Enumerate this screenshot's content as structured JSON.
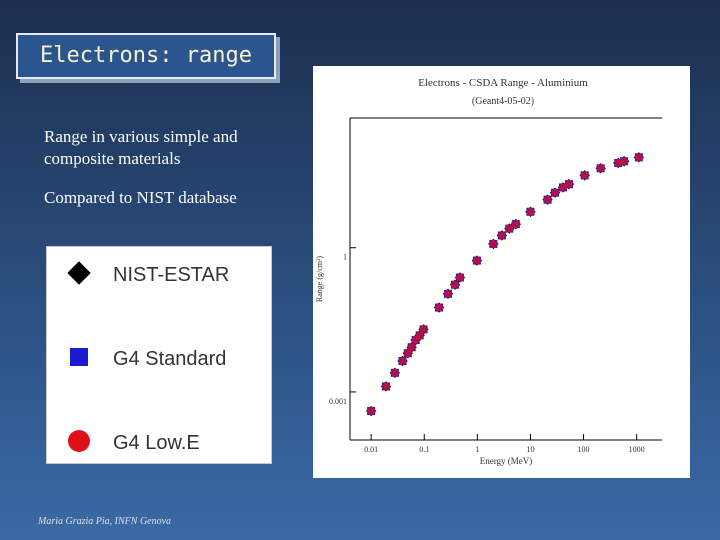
{
  "slide": {
    "title": "Electrons: range",
    "bullets": [
      "Range in various simple and composite materials",
      "Compared to NIST database"
    ],
    "footer": "Maria Grazia Pia, INFN Genova"
  },
  "chart_data": {
    "type": "scatter",
    "title": "Electrons - CSDA Range - Aluminium",
    "subtitle": "(Geant4-05-02)",
    "x_label": "Energy (MeV)",
    "y_label": "Range (g/cm²)",
    "xscale": "log",
    "yscale": "log",
    "xlim": [
      0.004,
      3000
    ],
    "ylim": [
      0.0001,
      500
    ],
    "xticks": [
      0.01,
      0.1,
      1,
      10,
      100,
      1000
    ],
    "yticks": [
      0.001,
      1
    ],
    "x": [
      0.01,
      0.019,
      0.028,
      0.039,
      0.049,
      0.058,
      0.069,
      0.082,
      0.097,
      0.19,
      0.28,
      0.38,
      0.47,
      0.98,
      2.0,
      2.9,
      4.0,
      5.3,
      10,
      21,
      29,
      41,
      53,
      105,
      210,
      450,
      580,
      1100
    ],
    "series": [
      {
        "name": "NIST-ESTAR",
        "color": "#000000",
        "marker": "diamond",
        "values": [
          0.0004,
          0.0013,
          0.0025,
          0.0044,
          0.0064,
          0.0085,
          0.012,
          0.015,
          0.02,
          0.057,
          0.11,
          0.17,
          0.24,
          0.54,
          1.2,
          1.8,
          2.5,
          3.1,
          5.6,
          10,
          14,
          18,
          21,
          32,
          45,
          58,
          63,
          76
        ]
      },
      {
        "name": "G4 Standard",
        "color": "#1a1ad0",
        "marker": "square",
        "values": [
          0.0004,
          0.0013,
          0.0025,
          0.0044,
          0.0064,
          0.0085,
          0.012,
          0.015,
          0.02,
          0.057,
          0.11,
          0.17,
          0.24,
          0.54,
          1.2,
          1.8,
          2.5,
          3.1,
          5.6,
          10,
          14,
          18,
          21,
          32,
          45,
          58,
          63,
          76
        ]
      },
      {
        "name": "G4 Low.E",
        "color": "#e0101a",
        "marker": "circle",
        "values": [
          0.0004,
          0.0013,
          0.0025,
          0.0044,
          0.0064,
          0.0085,
          0.012,
          0.015,
          0.02,
          0.057,
          0.11,
          0.17,
          0.24,
          0.54,
          1.2,
          1.8,
          2.5,
          3.1,
          5.6,
          10,
          14,
          18,
          21,
          32,
          45,
          58,
          63,
          76
        ]
      }
    ]
  }
}
